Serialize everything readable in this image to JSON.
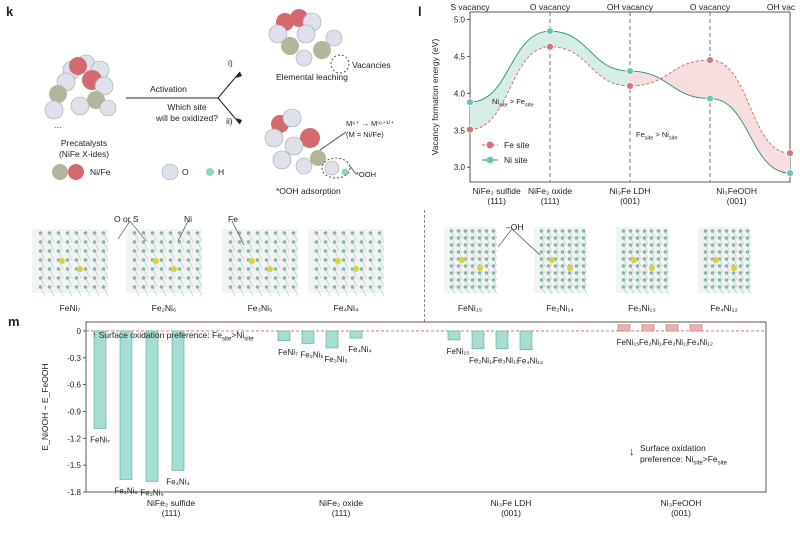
{
  "panel_k": {
    "label": "k",
    "precatalyst_line1": "Precatalysts",
    "precatalyst_line2": "(NiFe X-ides)",
    "activation": "Activation",
    "question_line1": "Which site",
    "question_line2": "will be oxidized?",
    "branch_i": "i)",
    "branch_ii": "ii)",
    "vacancies": "Vacancies",
    "leaching": "Elemental leaching",
    "oxidation_line1": "M⁶⁺ → M⁽⁶⁺¹⁾⁺",
    "oxidation_line2": "(M = Ni/Fe)",
    "ooh_label": "*OOH",
    "ooh_adsorption": "*OOH adsorption",
    "legend_nife": "Ni/Fe",
    "legend_o": "O",
    "legend_h": "H",
    "ellipsis": "..."
  },
  "panel_l": {
    "label": "l",
    "site_legend": [
      "Fe site",
      "Ni site"
    ],
    "annot_ni_fe": "Ni_site > Fe_site",
    "annot_fe_ni": "Fe_site > Ni_site"
  },
  "panel_struct": {
    "labels_left": [
      "FeNi₇",
      "Fe₂Ni₆",
      "Fe₃Ni₅",
      "Fe₄Ni₄"
    ],
    "labels_right": [
      "FeNi₁₅",
      "Fe₂Ni₁₄",
      "Fe₃Ni₁₃",
      "Fe₄Ni₁₂"
    ],
    "callout_os": "O or S",
    "callout_ni": "Ni",
    "callout_fe": "Fe",
    "callout_oh": "–OH"
  },
  "panel_m": {
    "label": "m",
    "top_note": "Surface oxidation preference: Fe_site>Ni_site",
    "bottom_note_line1": "Surface oxidation",
    "bottom_note_line2": "preference: Ni_site>Fe_site"
  },
  "chart_data": [
    {
      "type": "line",
      "ylabel": "Vacancy formation energy (eV)",
      "ylim": [
        2.8,
        5.1
      ],
      "yticks": [
        3.0,
        3.5,
        4.0,
        4.5,
        5.0
      ],
      "x": [
        0,
        1,
        2,
        3,
        4,
        5,
        6
      ],
      "vacancy_labels": [
        "S vacancy",
        "O vacancy",
        "OH vacancy",
        "O vacancy",
        "OH vacancy"
      ],
      "vacancy_x": [
        0,
        1.5,
        3,
        4.5,
        6
      ],
      "categories": [
        {
          "name": "NiFe₂ sulfide",
          "sub": "(111)",
          "x": 0.5
        },
        {
          "name": "NiFe₂ oxide",
          "sub": "(111)",
          "x": 1.5
        },
        {
          "name": "Ni₃Fe LDH",
          "sub": "(001)",
          "x": 3
        },
        {
          "name": "Ni₃FeOOH",
          "sub": "(001)",
          "x": 5
        }
      ],
      "series": [
        {
          "name": "Fe site",
          "color": "#d9727a",
          "points": [
            [
              0,
              3.51
            ],
            [
              1.5,
              4.63
            ],
            [
              3,
              4.1
            ],
            [
              4.5,
              4.45
            ],
            [
              6,
              3.19
            ]
          ]
        },
        {
          "name": "Ni site",
          "color": "#6cc3b4",
          "points": [
            [
              0,
              3.88
            ],
            [
              1.5,
              4.84
            ],
            [
              3,
              4.3
            ],
            [
              4.5,
              3.93
            ],
            [
              6,
              2.92
            ]
          ]
        }
      ]
    },
    {
      "type": "bar",
      "ylabel": "E_NiOOH − E_FeOOH",
      "ylim": [
        -1.8,
        0.1
      ],
      "yticks": [
        0,
        -0.3,
        -0.6,
        -0.9,
        -1.2,
        -1.5,
        -1.8
      ],
      "groups": [
        {
          "name": "NiFe₂ sulfide",
          "sub": "(111)",
          "labels": [
            "FeNi₇",
            "Fe₂Ni₆",
            "Fe₃Ni₅",
            "Fe₄Ni₄"
          ],
          "values": [
            -1.09,
            -1.66,
            -1.68,
            -1.56
          ]
        },
        {
          "name": "NiFe₂ oxide",
          "sub": "(111)",
          "labels": [
            "FeNi₇",
            "Fe₂Ni₆",
            "Fe₃Ni₅",
            "Fe₄Ni₄"
          ],
          "values": [
            -0.11,
            -0.14,
            -0.19,
            -0.08
          ]
        },
        {
          "name": "Ni₃Fe LDH",
          "sub": "(001)",
          "labels": [
            "FeNi₁₅",
            "Fe₂Ni₁₄",
            "Fe₃Ni₁₃",
            "Fe₄Ni₁₂"
          ],
          "values": [
            -0.1,
            -0.2,
            -0.2,
            -0.21
          ]
        },
        {
          "name": "Ni₃FeOOH",
          "sub": "(001)",
          "labels": [
            "FeNi₁₅",
            "Fe₂Ni₁₄",
            "Fe₃Ni₁₃",
            "Fe₄Ni₁₂"
          ],
          "values": [
            0.07,
            0.07,
            0.07,
            0.07
          ]
        }
      ],
      "neg_color": "#a6ddd3",
      "pos_color": "#eeb1b2"
    }
  ]
}
